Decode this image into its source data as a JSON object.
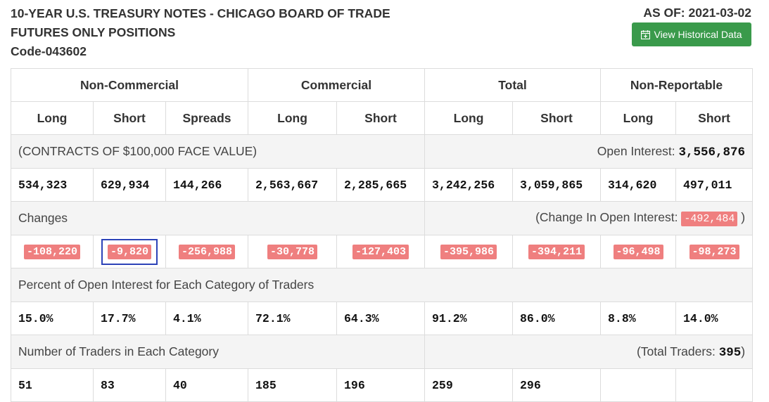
{
  "header": {
    "title_line1": "10-YEAR U.S. TREASURY NOTES - CHICAGO BOARD OF TRADE",
    "title_line2": "FUTURES ONLY POSITIONS",
    "title_line3": "Code-043602",
    "as_of": "AS OF: 2021-03-02",
    "history_button": "View Historical Data"
  },
  "groups": [
    "Non-Commercial",
    "Commercial",
    "Total",
    "Non-Reportable"
  ],
  "subheaders": [
    "Long",
    "Short",
    "Spreads",
    "Long",
    "Short",
    "Long",
    "Short",
    "Long",
    "Short"
  ],
  "contracts": {
    "label": "(CONTRACTS OF $100,000 FACE VALUE)",
    "oi_label": "Open Interest: ",
    "oi_value": "3,556,876",
    "values": [
      "534,323",
      "629,934",
      "144,266",
      "2,563,667",
      "2,285,665",
      "3,242,256",
      "3,059,865",
      "314,620",
      "497,011"
    ]
  },
  "changes": {
    "label": "Changes",
    "oi_label_open": "(Change In Open Interest: ",
    "oi_value": "-492,484",
    "oi_label_close": " )",
    "values": [
      "-108,220",
      "-9,820",
      "-256,988",
      "-30,778",
      "-127,403",
      "-395,986",
      "-394,211",
      "-96,498",
      "-98,273"
    ]
  },
  "percent": {
    "label": "Percent of Open Interest for Each Category of Traders",
    "values": [
      "15.0%",
      "17.7%",
      "4.1%",
      "72.1%",
      "64.3%",
      "91.2%",
      "86.0%",
      "8.8%",
      "14.0%"
    ]
  },
  "traders": {
    "label": "Number of Traders in Each Category",
    "total_label_open": "(Total Traders: ",
    "total_value": "395",
    "total_label_close": ")",
    "values": [
      "51",
      "83",
      "40",
      "185",
      "196",
      "259",
      "296",
      "",
      ""
    ]
  },
  "colors": {
    "button_green": "#3a9a4b",
    "negative_badge": "#ef7f7f",
    "focus_border": "#2c43b8"
  }
}
